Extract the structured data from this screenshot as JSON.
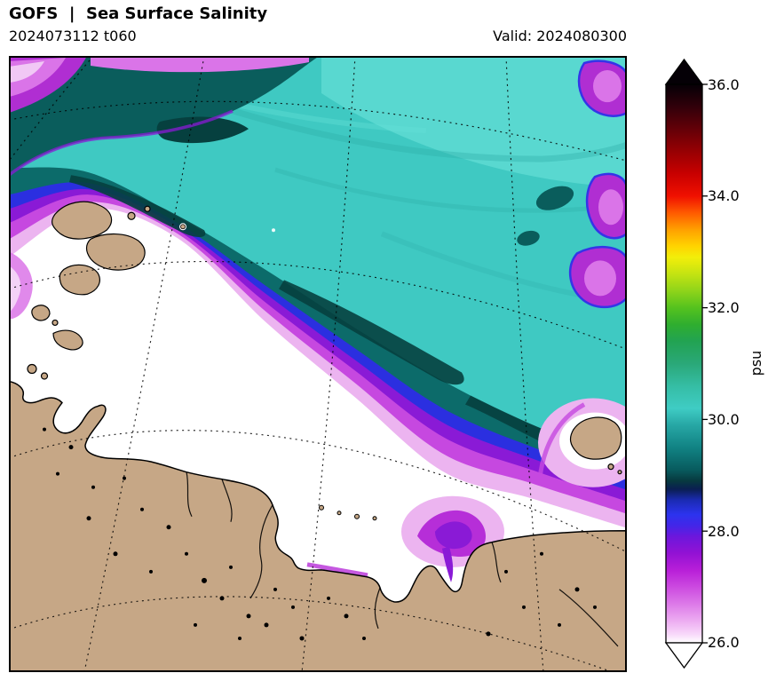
{
  "header": {
    "title": "GOFS  |  Sea Surface Salinity",
    "run": "2024073112 t060",
    "valid": "Valid: 2024080300"
  },
  "colorbar": {
    "label": "psu",
    "ticks": [
      "36.0",
      "34.0",
      "32.0",
      "30.0",
      "28.0",
      "26.0"
    ]
  },
  "chart_data": {
    "type": "heatmap",
    "title": "GOFS | Sea Surface Salinity",
    "model_run": "2024073112",
    "forecast_hour": "t060",
    "valid_time": "2024080300",
    "units": "psu",
    "legend_position": "right",
    "graticule": "dotted curved latitude/longitude grid over map and land",
    "colorbar": {
      "min": 26.0,
      "max": 36.0,
      "tick_values": [
        36.0,
        34.0,
        32.0,
        30.0,
        28.0,
        26.0
      ],
      "extend": "both",
      "stops": [
        {
          "v": 36.0,
          "c": "#050006"
        },
        {
          "v": 35.6,
          "c": "#31000a"
        },
        {
          "v": 35.2,
          "c": "#640008"
        },
        {
          "v": 34.8,
          "c": "#970003"
        },
        {
          "v": 34.4,
          "c": "#c80000"
        },
        {
          "v": 34.0,
          "c": "#f01000"
        },
        {
          "v": 33.7,
          "c": "#ff5a00"
        },
        {
          "v": 33.4,
          "c": "#ffa000"
        },
        {
          "v": 33.1,
          "c": "#ffd400"
        },
        {
          "v": 32.9,
          "c": "#f2ee0a"
        },
        {
          "v": 32.6,
          "c": "#c3e312"
        },
        {
          "v": 32.3,
          "c": "#8ed41a"
        },
        {
          "v": 32.0,
          "c": "#55c21e"
        },
        {
          "v": 31.7,
          "c": "#2fae2f"
        },
        {
          "v": 31.4,
          "c": "#22a352"
        },
        {
          "v": 31.0,
          "c": "#2aa878"
        },
        {
          "v": 30.6,
          "c": "#35bda4"
        },
        {
          "v": 30.2,
          "c": "#3fccc4"
        },
        {
          "v": 29.9,
          "c": "#27a7a5"
        },
        {
          "v": 29.5,
          "c": "#118384"
        },
        {
          "v": 29.1,
          "c": "#085b5e"
        },
        {
          "v": 28.9,
          "c": "#07393f"
        },
        {
          "v": 28.75,
          "c": "#0a1e52"
        },
        {
          "v": 28.55,
          "c": "#1b2bb4"
        },
        {
          "v": 28.3,
          "c": "#2c33ee"
        },
        {
          "v": 28.1,
          "c": "#4326e8"
        },
        {
          "v": 27.9,
          "c": "#6d17dc"
        },
        {
          "v": 27.6,
          "c": "#9312d4"
        },
        {
          "v": 27.3,
          "c": "#b81fd8"
        },
        {
          "v": 27.0,
          "c": "#cc4ae0"
        },
        {
          "v": 26.7,
          "c": "#dc79e8"
        },
        {
          "v": 26.4,
          "c": "#ecabf1"
        },
        {
          "v": 26.15,
          "c": "#f8d9fa"
        },
        {
          "v": 26.0,
          "c": "#ffffff"
        }
      ]
    },
    "field_summary": [
      {
        "area": "open ocean, upper right half",
        "salinity_psu": "29.5-31 (turquoise)"
      },
      {
        "area": "dark frontal band running NW-SE across the map",
        "salinity_psu": "28.7-29.5 (dark teal)"
      },
      {
        "area": "gradient band seaward of plume (blue-purple-magenta-pink)",
        "salinity_psu": "26.5-28.7"
      },
      {
        "area": "river plume / coastal water, center-left (white)",
        "salinity_psu": "<= 26, below scale minimum"
      },
      {
        "area": "magenta patch at estuary mouth, bottom center",
        "salinity_psu": "27-28"
      },
      {
        "area": "magenta pockets along right edge and top-left corner",
        "salinity_psu": "27-28"
      },
      {
        "area": "lower-left quadrant and bottom strip",
        "surface": "land"
      },
      {
        "area": "archipelago upper-left; island at right edge",
        "surface": "land"
      }
    ]
  },
  "colors": {
    "turquoise": "#3fc9c2",
    "cyan_light": "#5cd9d1",
    "teal_streak": "#2aada7",
    "cyan_streak": "#65e0d8",
    "teal_band": "#0c6b6a",
    "teal_deep": "#0a5d5c",
    "teal_core": "#06403f",
    "blue": "#2b2fe0",
    "blue_fringe": "#3434e8",
    "purple": "#8a1ad6",
    "magenta": "#c648e0",
    "magenta_deep": "#b02ed2",
    "orchid": "#da74e8",
    "pink": "#ecb4f0",
    "pink_pale": "#f3d2f6",
    "plume": "#b62ed8",
    "white": "#ffffff",
    "land": "#c6a786",
    "ink": "#000000"
  }
}
